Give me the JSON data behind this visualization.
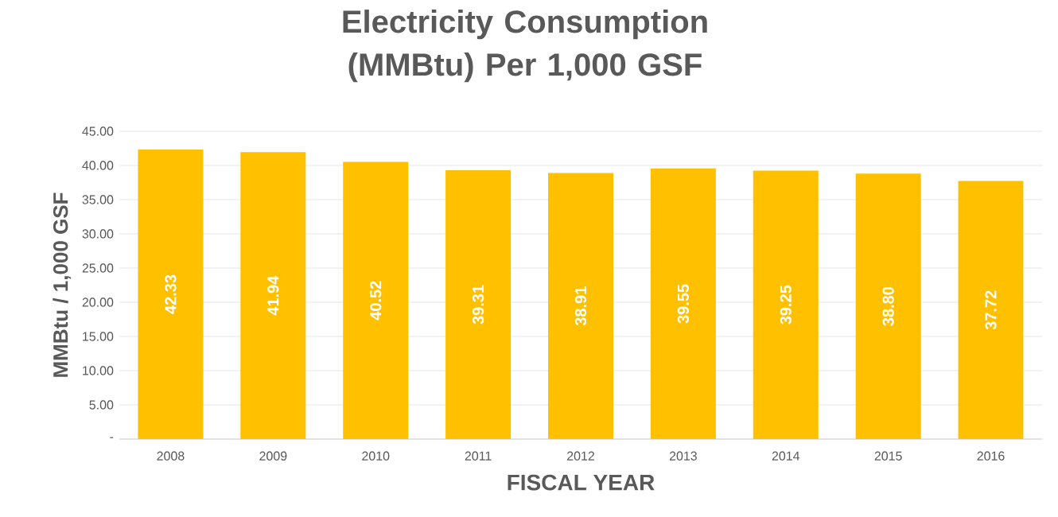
{
  "chart_data": {
    "type": "bar",
    "title": "Electricity Consumption (MMBtu) Per 1,000 GSF",
    "xlabel": "FISCAL YEAR",
    "ylabel": "MMBtu / 1,000 GSF",
    "categories": [
      "2008",
      "2009",
      "2010",
      "2011",
      "2012",
      "2013",
      "2014",
      "2015",
      "2016"
    ],
    "values": [
      42.33,
      41.94,
      40.52,
      39.31,
      38.91,
      39.55,
      39.25,
      38.8,
      37.72
    ],
    "value_labels": [
      "42.33",
      "41.94",
      "40.52",
      "39.31",
      "38.91",
      "39.55",
      "39.25",
      "38.80",
      "37.72"
    ],
    "color": "#ffc000",
    "ylim": [
      0,
      45
    ],
    "yticks": [
      {
        "value": 0,
        "label": "-"
      },
      {
        "value": 5,
        "label": "5.00"
      },
      {
        "value": 10,
        "label": "10.00"
      },
      {
        "value": 15,
        "label": "15.00"
      },
      {
        "value": 20,
        "label": "20.00"
      },
      {
        "value": 25,
        "label": "25.00"
      },
      {
        "value": 30,
        "label": "30.00"
      },
      {
        "value": 35,
        "label": "35.00"
      },
      {
        "value": 40,
        "label": "40.00"
      },
      {
        "value": 45,
        "label": "45.00"
      }
    ],
    "grid": "y"
  }
}
